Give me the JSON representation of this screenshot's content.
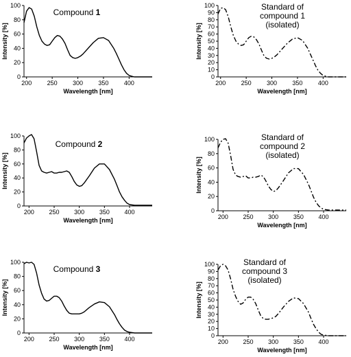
{
  "chart_data": [
    {
      "type": "line",
      "title": "Compound ",
      "title_number": "1",
      "title_lines": [],
      "xlabel": "Wavelength [nm]",
      "ylabel": "Intensity [%]",
      "xticks": [
        "200",
        "250",
        "300",
        "350",
        "400"
      ],
      "yticks": [
        "0",
        "20",
        "40",
        "60",
        "80",
        "100"
      ],
      "xlim": [
        195,
        445
      ],
      "ylim": [
        0,
        100
      ],
      "line_style": "solid",
      "x": [
        195,
        200,
        205,
        210,
        215,
        220,
        225,
        230,
        235,
        240,
        245,
        250,
        255,
        260,
        265,
        270,
        275,
        280,
        285,
        290,
        295,
        300,
        305,
        310,
        320,
        330,
        340,
        350,
        360,
        370,
        375,
        380,
        385,
        390,
        395,
        400,
        405,
        410,
        420,
        430,
        445
      ],
      "y": [
        76,
        92,
        97,
        95,
        85,
        70,
        58,
        50,
        46,
        44,
        45,
        50,
        55,
        58,
        57,
        53,
        47,
        38,
        30,
        27,
        26,
        27,
        29,
        32,
        40,
        48,
        54,
        55,
        51,
        40,
        33,
        25,
        17,
        10,
        5,
        2,
        1,
        0,
        0,
        0,
        0
      ]
    },
    {
      "type": "line",
      "title": "",
      "title_number": "",
      "title_lines": [
        "Standard of",
        "compound 1",
        "(isolated)"
      ],
      "xlabel": "Wavelength [nm]",
      "ylabel": "Intensity [%]",
      "xticks": [
        "200",
        "250",
        "300",
        "350",
        "400"
      ],
      "yticks": [
        "0",
        "10",
        "20",
        "30",
        "40",
        "50",
        "60",
        "70",
        "80",
        "90",
        "100"
      ],
      "xlim": [
        195,
        445
      ],
      "ylim": [
        0,
        100
      ],
      "line_style": "dash-dot",
      "x": [
        195,
        200,
        205,
        210,
        215,
        220,
        225,
        230,
        235,
        240,
        245,
        250,
        255,
        260,
        265,
        270,
        275,
        280,
        285,
        290,
        295,
        300,
        305,
        310,
        320,
        330,
        340,
        350,
        360,
        370,
        375,
        380,
        385,
        390,
        395,
        400,
        405,
        410,
        420,
        430,
        445
      ],
      "y": [
        88,
        96,
        97,
        94,
        84,
        70,
        58,
        50,
        46,
        44,
        45,
        50,
        55,
        57,
        56,
        52,
        46,
        37,
        29,
        26,
        25,
        26,
        28,
        31,
        39,
        47,
        53,
        55,
        51,
        40,
        32,
        24,
        16,
        9,
        5,
        2,
        1,
        0,
        0,
        0,
        0
      ]
    },
    {
      "type": "line",
      "title": "Compound ",
      "title_number": "2",
      "title_lines": [],
      "xlabel": "Wavelength [nm]",
      "ylabel": "Intensity [%]",
      "xticks": [
        "200",
        "250",
        "300",
        "350",
        "400"
      ],
      "yticks": [
        "0",
        "20",
        "40",
        "60",
        "80",
        "100"
      ],
      "xlim": [
        190,
        445
      ],
      "ylim": [
        0,
        100
      ],
      "line_style": "solid",
      "x": [
        190,
        195,
        200,
        205,
        210,
        215,
        220,
        225,
        230,
        235,
        240,
        245,
        250,
        255,
        260,
        265,
        270,
        275,
        280,
        285,
        290,
        295,
        300,
        305,
        310,
        320,
        330,
        340,
        350,
        360,
        370,
        375,
        380,
        385,
        390,
        395,
        400,
        410,
        420,
        430,
        445
      ],
      "y": [
        90,
        97,
        100,
        102,
        96,
        78,
        58,
        50,
        48,
        47,
        48,
        49,
        47,
        47,
        48,
        48,
        49,
        50,
        48,
        42,
        35,
        30,
        28,
        29,
        33,
        43,
        54,
        60,
        60,
        52,
        38,
        29,
        20,
        13,
        8,
        4,
        2,
        1,
        1,
        1,
        1
      ]
    },
    {
      "type": "line",
      "title": "",
      "title_number": "",
      "title_lines": [
        "Standard of",
        "compound 2",
        "(isolated)"
      ],
      "xlabel": "Wavelength [nm]",
      "ylabel": "Intensity [%]",
      "xticks": [
        "200",
        "250",
        "300",
        "350",
        "400"
      ],
      "yticks": [
        "0",
        "20",
        "40",
        "60",
        "80",
        "100"
      ],
      "xlim": [
        190,
        445
      ],
      "ylim": [
        0,
        100
      ],
      "line_style": "dash-dot",
      "x": [
        190,
        195,
        200,
        205,
        210,
        215,
        220,
        225,
        230,
        235,
        240,
        245,
        250,
        255,
        260,
        265,
        270,
        275,
        280,
        285,
        290,
        295,
        300,
        305,
        310,
        320,
        330,
        340,
        350,
        360,
        370,
        375,
        380,
        385,
        390,
        395,
        400,
        410,
        420,
        430,
        445
      ],
      "y": [
        88,
        96,
        100,
        101,
        95,
        78,
        58,
        50,
        48,
        47,
        48,
        49,
        46,
        46,
        47,
        47,
        48,
        50,
        48,
        42,
        35,
        30,
        27,
        28,
        32,
        42,
        53,
        59,
        59,
        51,
        37,
        28,
        19,
        12,
        7,
        4,
        2,
        1,
        1,
        1,
        1
      ]
    },
    {
      "type": "line",
      "title": "Compound ",
      "title_number": "3",
      "title_lines": [],
      "xlabel": "Wavelength [nm]",
      "ylabel": "Intensity [%]",
      "xticks": [
        "200",
        "250",
        "300",
        "350",
        "400"
      ],
      "yticks": [
        "0",
        "20",
        "40",
        "60",
        "80",
        "100"
      ],
      "xlim": [
        190,
        445
      ],
      "ylim": [
        0,
        100
      ],
      "line_style": "solid",
      "x": [
        190,
        195,
        200,
        205,
        210,
        215,
        220,
        225,
        230,
        235,
        240,
        245,
        250,
        255,
        260,
        265,
        270,
        275,
        280,
        285,
        290,
        295,
        300,
        305,
        310,
        320,
        330,
        340,
        350,
        360,
        370,
        375,
        380,
        385,
        390,
        395,
        400,
        410,
        420,
        430,
        445
      ],
      "y": [
        98,
        100,
        99,
        100,
        97,
        85,
        68,
        56,
        48,
        45,
        46,
        49,
        52,
        52,
        50,
        45,
        38,
        32,
        28,
        27,
        27,
        27,
        27,
        28,
        30,
        36,
        41,
        44,
        43,
        37,
        26,
        19,
        13,
        8,
        4,
        2,
        1,
        0,
        0,
        0,
        0
      ]
    },
    {
      "type": "line",
      "title": "",
      "title_number": "",
      "title_lines": [
        "Standard of",
        "compound 3",
        "(isolated)"
      ],
      "xlabel": "Wavelength [nm]",
      "ylabel": "Intensity [%]",
      "xticks": [
        "200",
        "250",
        "300",
        "350",
        "400"
      ],
      "yticks": [
        "0",
        "10",
        "20",
        "30",
        "40",
        "50",
        "60",
        "70",
        "80",
        "90",
        "100"
      ],
      "xlim": [
        190,
        445
      ],
      "ylim": [
        0,
        100
      ],
      "line_style": "dash-dot",
      "x": [
        190,
        195,
        200,
        205,
        210,
        215,
        220,
        225,
        230,
        235,
        240,
        245,
        250,
        255,
        260,
        265,
        270,
        275,
        280,
        285,
        290,
        295,
        300,
        305,
        310,
        320,
        330,
        340,
        350,
        360,
        370,
        375,
        380,
        385,
        390,
        395,
        400,
        410,
        420,
        430,
        445
      ],
      "y": [
        92,
        98,
        100,
        98,
        92,
        80,
        65,
        55,
        48,
        44,
        46,
        51,
        54,
        54,
        51,
        45,
        36,
        28,
        24,
        23,
        23,
        24,
        25,
        27,
        31,
        40,
        48,
        53,
        52,
        45,
        33,
        24,
        16,
        10,
        5,
        2,
        1,
        0,
        0,
        0,
        0
      ]
    }
  ]
}
